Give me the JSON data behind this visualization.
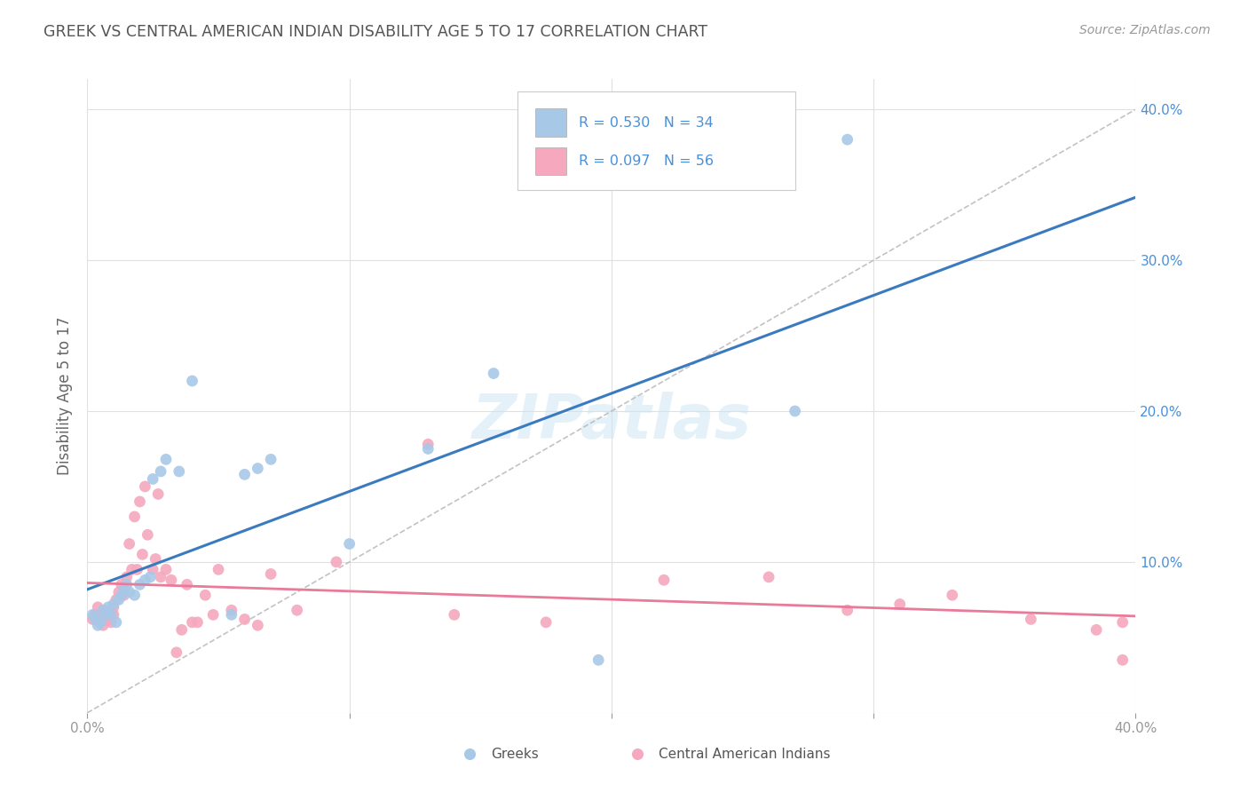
{
  "title": "GREEK VS CENTRAL AMERICAN INDIAN DISABILITY AGE 5 TO 17 CORRELATION CHART",
  "source": "Source: ZipAtlas.com",
  "ylabel": "Disability Age 5 to 17",
  "xlim": [
    0.0,
    0.4
  ],
  "ylim": [
    0.0,
    0.42
  ],
  "greek_R": 0.53,
  "greek_N": 34,
  "ca_indian_R": 0.097,
  "ca_indian_N": 56,
  "greek_color": "#a8c8e8",
  "ca_indian_color": "#f5a8be",
  "greek_line_color": "#3a7abf",
  "ca_indian_line_color": "#e87a9a",
  "diagonal_color": "#b8b8b8",
  "background_color": "#ffffff",
  "grid_color": "#e0e0e0",
  "title_color": "#555555",
  "axis_label_color": "#4a90d9",
  "watermark": "ZIPatlas",
  "greek_x": [
    0.002,
    0.003,
    0.004,
    0.005,
    0.006,
    0.007,
    0.008,
    0.009,
    0.01,
    0.011,
    0.012,
    0.013,
    0.014,
    0.015,
    0.016,
    0.018,
    0.02,
    0.022,
    0.024,
    0.025,
    0.028,
    0.03,
    0.035,
    0.04,
    0.055,
    0.06,
    0.065,
    0.07,
    0.1,
    0.13,
    0.155,
    0.195,
    0.27,
    0.29
  ],
  "greek_y": [
    0.065,
    0.062,
    0.058,
    0.06,
    0.068,
    0.065,
    0.07,
    0.065,
    0.072,
    0.06,
    0.075,
    0.078,
    0.082,
    0.085,
    0.08,
    0.078,
    0.085,
    0.088,
    0.09,
    0.155,
    0.16,
    0.168,
    0.16,
    0.22,
    0.065,
    0.158,
    0.162,
    0.168,
    0.112,
    0.175,
    0.225,
    0.035,
    0.2,
    0.38
  ],
  "ca_indian_x": [
    0.002,
    0.003,
    0.004,
    0.005,
    0.006,
    0.006,
    0.007,
    0.008,
    0.009,
    0.01,
    0.01,
    0.011,
    0.012,
    0.013,
    0.014,
    0.015,
    0.016,
    0.017,
    0.018,
    0.019,
    0.02,
    0.021,
    0.022,
    0.023,
    0.025,
    0.026,
    0.027,
    0.028,
    0.03,
    0.032,
    0.034,
    0.036,
    0.038,
    0.04,
    0.042,
    0.045,
    0.048,
    0.05,
    0.055,
    0.06,
    0.065,
    0.07,
    0.08,
    0.095,
    0.13,
    0.14,
    0.175,
    0.22,
    0.26,
    0.29,
    0.31,
    0.33,
    0.36,
    0.385,
    0.395,
    0.395
  ],
  "ca_indian_y": [
    0.062,
    0.065,
    0.07,
    0.06,
    0.065,
    0.058,
    0.068,
    0.062,
    0.06,
    0.065,
    0.07,
    0.075,
    0.08,
    0.085,
    0.078,
    0.09,
    0.112,
    0.095,
    0.13,
    0.095,
    0.14,
    0.105,
    0.15,
    0.118,
    0.095,
    0.102,
    0.145,
    0.09,
    0.095,
    0.088,
    0.04,
    0.055,
    0.085,
    0.06,
    0.06,
    0.078,
    0.065,
    0.095,
    0.068,
    0.062,
    0.058,
    0.092,
    0.068,
    0.1,
    0.178,
    0.065,
    0.06,
    0.088,
    0.09,
    0.068,
    0.072,
    0.078,
    0.062,
    0.055,
    0.06,
    0.035
  ]
}
